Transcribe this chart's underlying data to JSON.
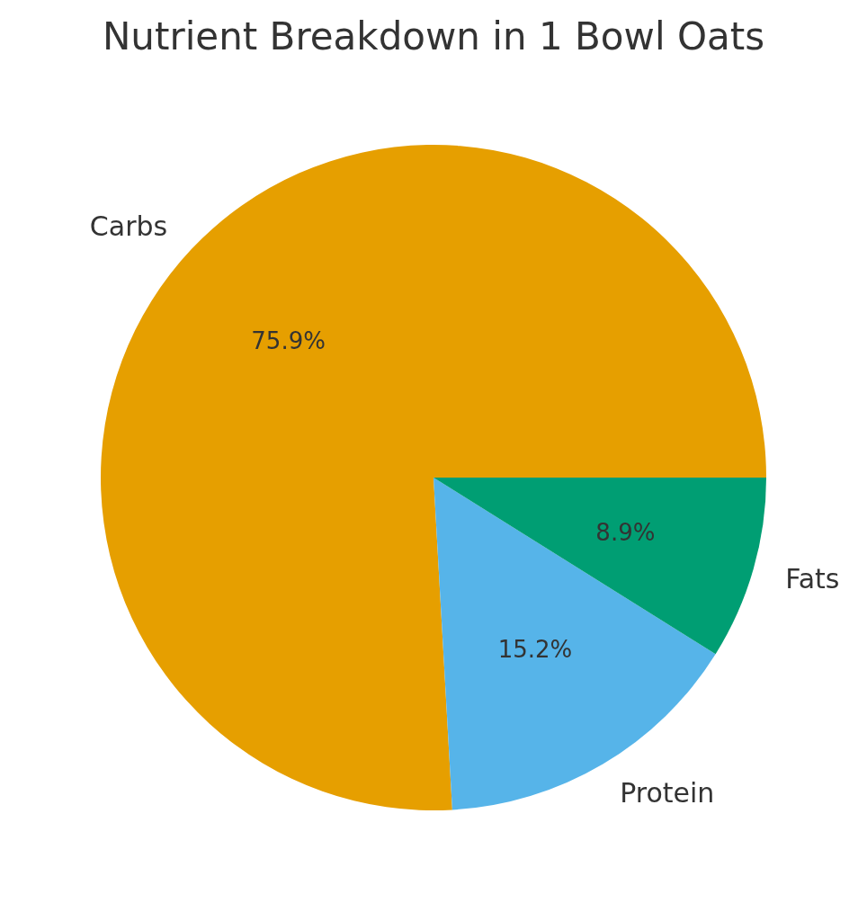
{
  "chart_data": {
    "type": "pie",
    "title": "Nutrient Breakdown in 1 Bowl Oats",
    "categories": [
      "Carbs",
      "Protein",
      "Fats"
    ],
    "values": [
      75.9,
      15.2,
      8.9
    ],
    "value_labels": [
      "75.9%",
      "15.2%",
      "8.9%"
    ],
    "colors": [
      "#e69f00",
      "#56b4e9",
      "#009e73"
    ]
  }
}
